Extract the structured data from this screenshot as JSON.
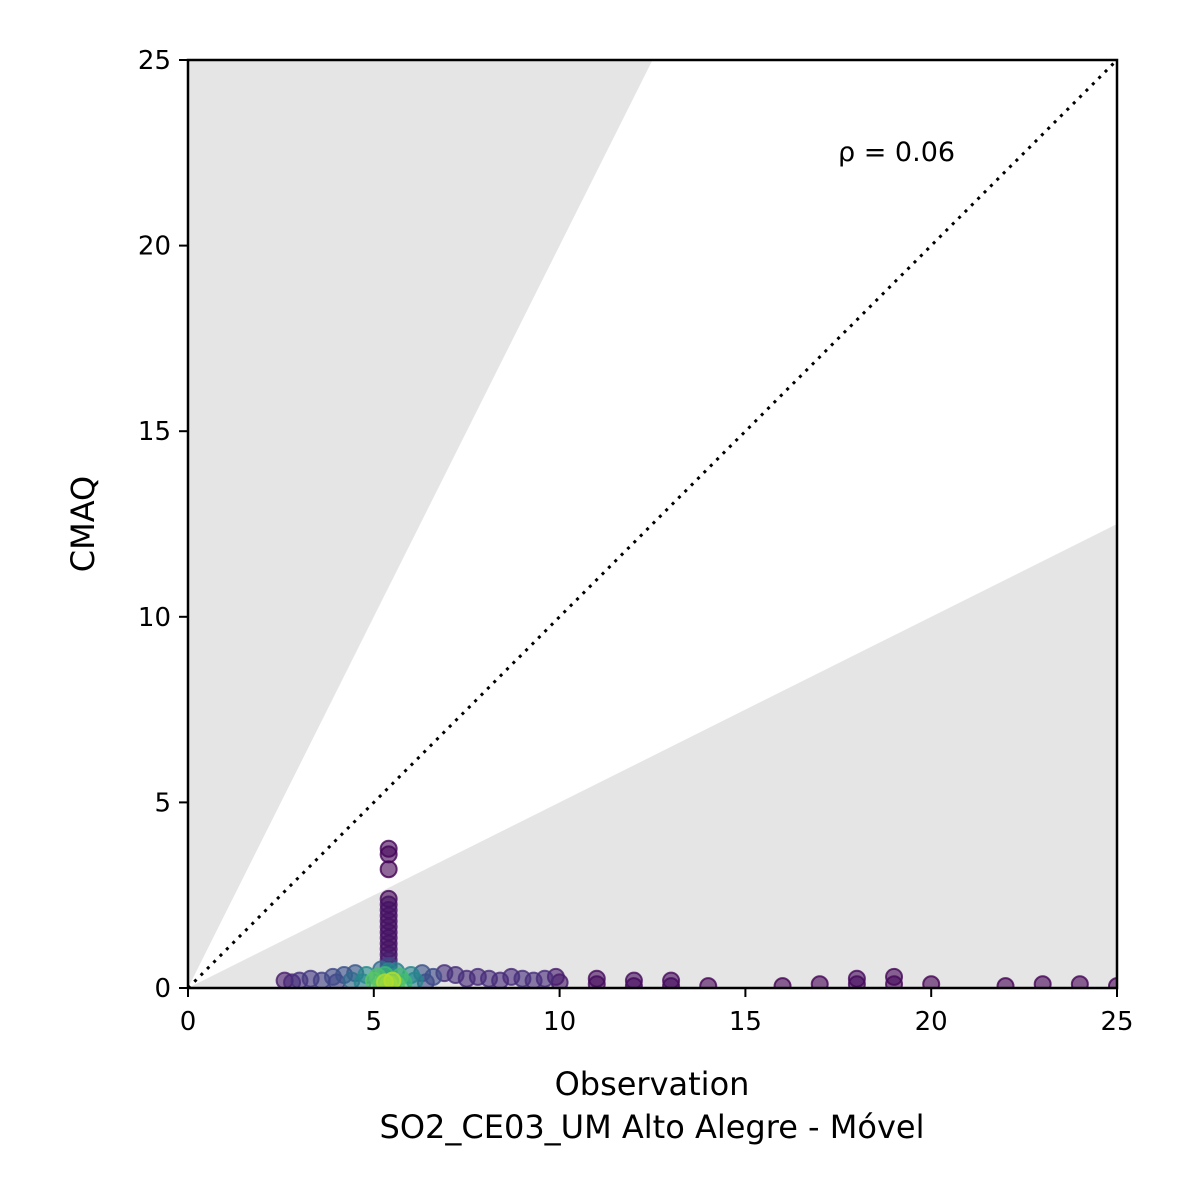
{
  "chart_data": {
    "type": "scatter",
    "xlabel": "Observation",
    "xlabel_sub": "SO2_CE03_UM Alto Alegre - Móvel",
    "ylabel": "CMAQ",
    "annotation": "ρ = 0.06",
    "xlim": [
      0,
      25
    ],
    "ylim": [
      0,
      25
    ],
    "xticks": [
      "0",
      "5",
      "10",
      "15",
      "20",
      "25"
    ],
    "yticks": [
      "0",
      "5",
      "10",
      "15",
      "20",
      "25"
    ],
    "reference_line": {
      "style": "dotted",
      "slope": 1
    },
    "shaded_regions": {
      "color": "#e5e5e5",
      "upper_slope": 2,
      "lower_slope": 0.5
    },
    "colormap": "viridis",
    "points": [
      {
        "x": 5.4,
        "y": 3.75
      },
      {
        "x": 5.4,
        "y": 3.6
      },
      {
        "x": 5.4,
        "y": 3.2
      },
      {
        "x": 5.4,
        "y": 2.4
      },
      {
        "x": 5.4,
        "y": 2.25
      },
      {
        "x": 5.4,
        "y": 2.1
      },
      {
        "x": 5.4,
        "y": 1.95
      },
      {
        "x": 5.4,
        "y": 1.8
      },
      {
        "x": 5.4,
        "y": 1.65
      },
      {
        "x": 5.4,
        "y": 1.5
      },
      {
        "x": 5.4,
        "y": 1.35
      },
      {
        "x": 5.4,
        "y": 1.2
      },
      {
        "x": 5.4,
        "y": 1.05
      },
      {
        "x": 5.4,
        "y": 0.9
      },
      {
        "x": 5.4,
        "y": 0.75
      },
      {
        "x": 5.4,
        "y": 0.6
      },
      {
        "x": 5.4,
        "y": 0.45
      },
      {
        "x": 5.2,
        "y": 0.5
      },
      {
        "x": 5.6,
        "y": 0.45
      },
      {
        "x": 5.3,
        "y": 0.35
      },
      {
        "x": 2.6,
        "y": 0.2
      },
      {
        "x": 2.8,
        "y": 0.15
      },
      {
        "x": 3.0,
        "y": 0.2
      },
      {
        "x": 3.3,
        "y": 0.25
      },
      {
        "x": 3.6,
        "y": 0.2
      },
      {
        "x": 3.9,
        "y": 0.3
      },
      {
        "x": 4.2,
        "y": 0.35
      },
      {
        "x": 4.5,
        "y": 0.4
      },
      {
        "x": 4.8,
        "y": 0.35
      },
      {
        "x": 5.1,
        "y": 0.3
      },
      {
        "x": 5.7,
        "y": 0.3
      },
      {
        "x": 6.0,
        "y": 0.35
      },
      {
        "x": 6.3,
        "y": 0.4
      },
      {
        "x": 6.6,
        "y": 0.3
      },
      {
        "x": 6.9,
        "y": 0.4
      },
      {
        "x": 7.2,
        "y": 0.35
      },
      {
        "x": 7.5,
        "y": 0.25
      },
      {
        "x": 7.8,
        "y": 0.3
      },
      {
        "x": 8.1,
        "y": 0.25
      },
      {
        "x": 8.4,
        "y": 0.2
      },
      {
        "x": 8.7,
        "y": 0.3
      },
      {
        "x": 9.0,
        "y": 0.25
      },
      {
        "x": 9.3,
        "y": 0.2
      },
      {
        "x": 9.6,
        "y": 0.25
      },
      {
        "x": 9.9,
        "y": 0.3
      },
      {
        "x": 10.0,
        "y": 0.15
      },
      {
        "x": 11.0,
        "y": 0.25
      },
      {
        "x": 11.0,
        "y": 0.1
      },
      {
        "x": 12.0,
        "y": 0.2
      },
      {
        "x": 12.0,
        "y": 0.05
      },
      {
        "x": 13.0,
        "y": 0.2
      },
      {
        "x": 13.0,
        "y": 0.05
      },
      {
        "x": 14.0,
        "y": 0.05
      },
      {
        "x": 16.0,
        "y": 0.05
      },
      {
        "x": 17.0,
        "y": 0.1
      },
      {
        "x": 18.0,
        "y": 0.25
      },
      {
        "x": 18.0,
        "y": 0.1
      },
      {
        "x": 19.0,
        "y": 0.3
      },
      {
        "x": 19.0,
        "y": 0.1
      },
      {
        "x": 20.0,
        "y": 0.1
      },
      {
        "x": 22.0,
        "y": 0.05
      },
      {
        "x": 23.0,
        "y": 0.1
      },
      {
        "x": 24.0,
        "y": 0.1
      },
      {
        "x": 25.0,
        "y": 0.05
      },
      {
        "x": 4.0,
        "y": 0.15
      },
      {
        "x": 4.4,
        "y": 0.2
      },
      {
        "x": 4.7,
        "y": 0.15
      },
      {
        "x": 5.0,
        "y": 0.2
      },
      {
        "x": 5.3,
        "y": 0.15
      },
      {
        "x": 5.5,
        "y": 0.2
      },
      {
        "x": 5.8,
        "y": 0.15
      },
      {
        "x": 6.1,
        "y": 0.2
      },
      {
        "x": 6.4,
        "y": 0.15
      },
      {
        "x": 5.2,
        "y": 0.1
      },
      {
        "x": 5.4,
        "y": 0.1
      },
      {
        "x": 5.6,
        "y": 0.1
      },
      {
        "x": 5.3,
        "y": 0.05
      },
      {
        "x": 5.5,
        "y": 0.05
      },
      {
        "x": 5.4,
        "y": 0.02
      }
    ]
  }
}
